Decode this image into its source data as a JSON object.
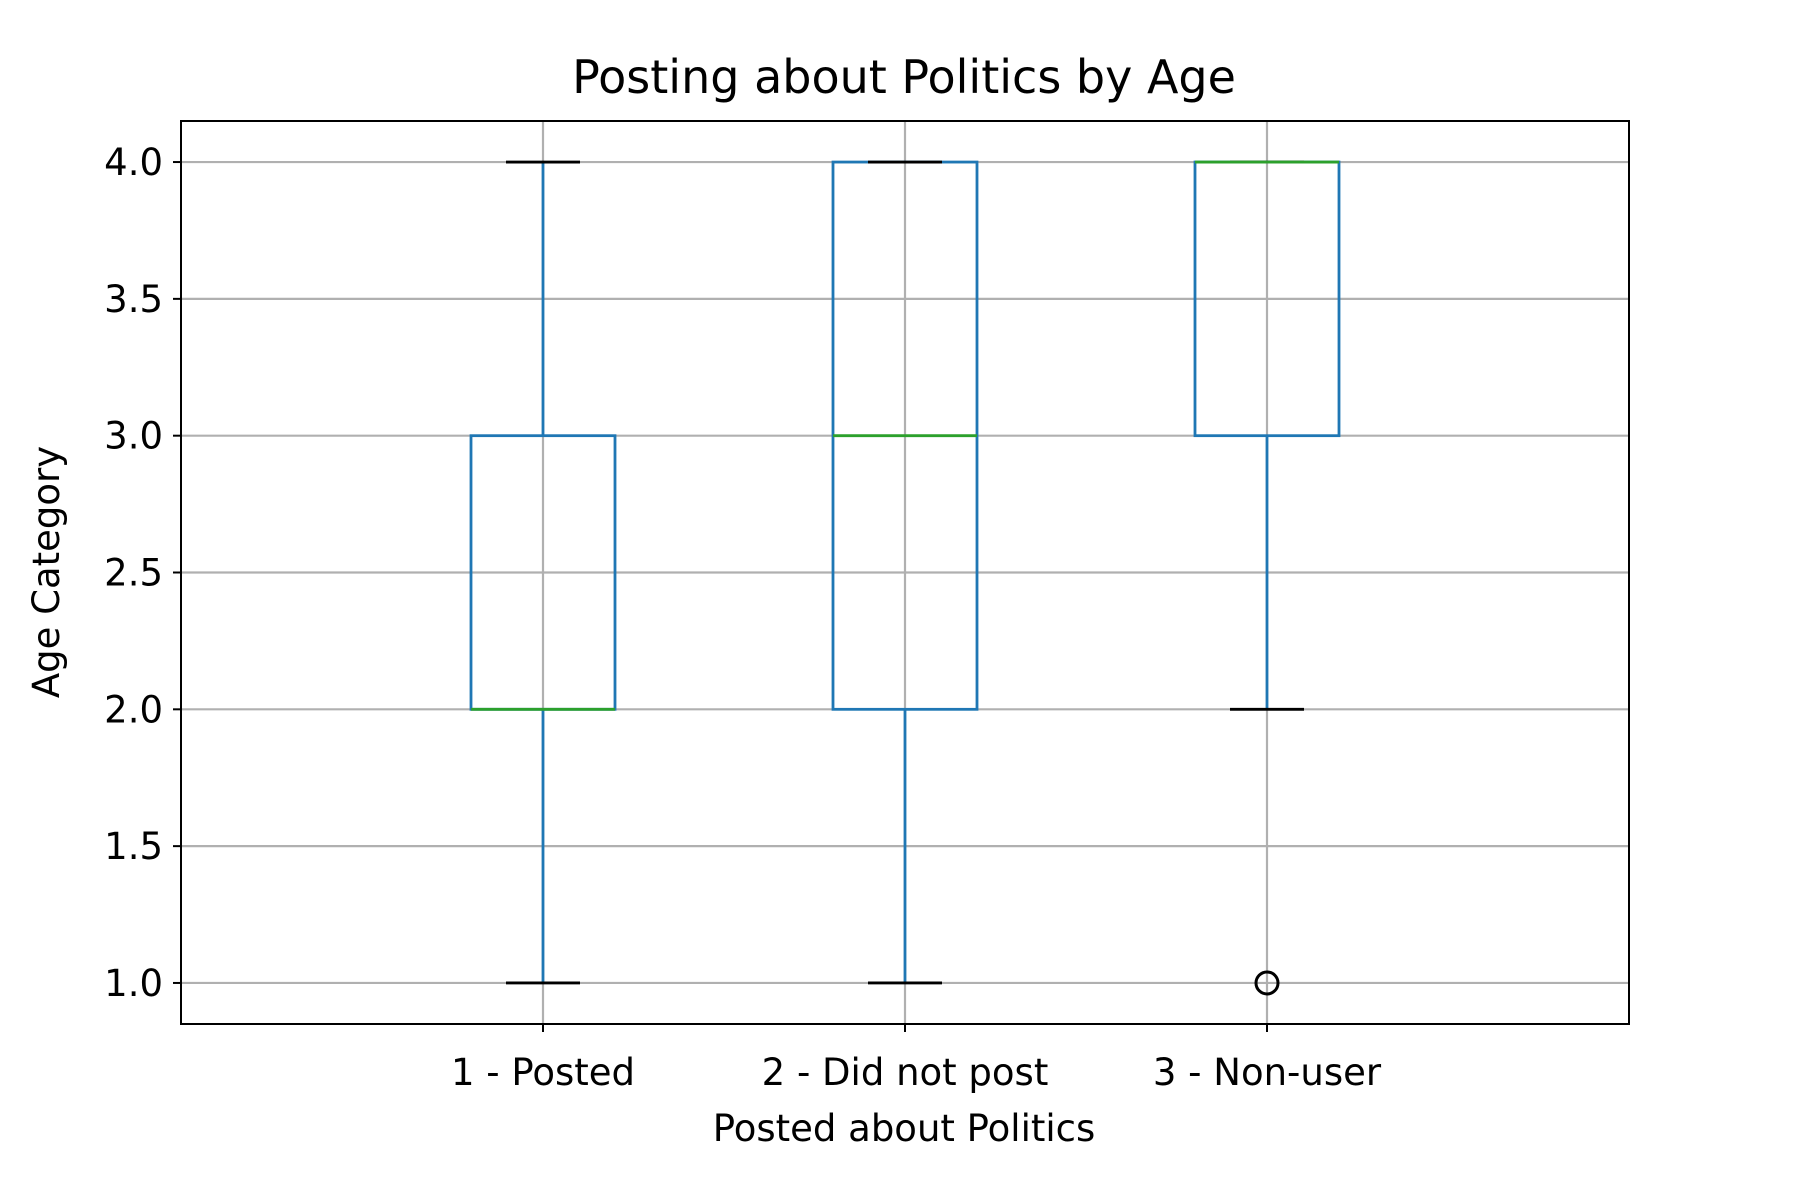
{
  "chart_data": {
    "type": "boxplot",
    "title": "Posting about Politics by Age",
    "xlabel": "Posted about Politics",
    "ylabel": "Age Category",
    "ylim": [
      0.85,
      4.15
    ],
    "yticks": [
      "1.0",
      "1.5",
      "2.0",
      "2.5",
      "3.0",
      "3.5",
      "4.0"
    ],
    "grid": true,
    "categories": [
      "1 - Posted",
      "2 - Did not post",
      "3 - Non-user"
    ],
    "boxes": [
      {
        "category": "1 - Posted",
        "whisker_low": 1.0,
        "q1": 2.0,
        "median": 2.0,
        "q3": 3.0,
        "whisker_high": 4.0,
        "outliers": []
      },
      {
        "category": "2 - Did not post",
        "whisker_low": 1.0,
        "q1": 2.0,
        "median": 3.0,
        "q3": 4.0,
        "whisker_high": 4.0,
        "outliers": []
      },
      {
        "category": "3 - Non-user",
        "whisker_low": 2.0,
        "q1": 3.0,
        "median": 4.0,
        "q3": 4.0,
        "whisker_high": 4.0,
        "outliers": [
          1.0
        ]
      }
    ],
    "colors": {
      "box": "#1f77b4",
      "median": "#2ca02c",
      "caps": "#000000",
      "grid": "#b0b0b0",
      "outlier": "#000000"
    }
  }
}
